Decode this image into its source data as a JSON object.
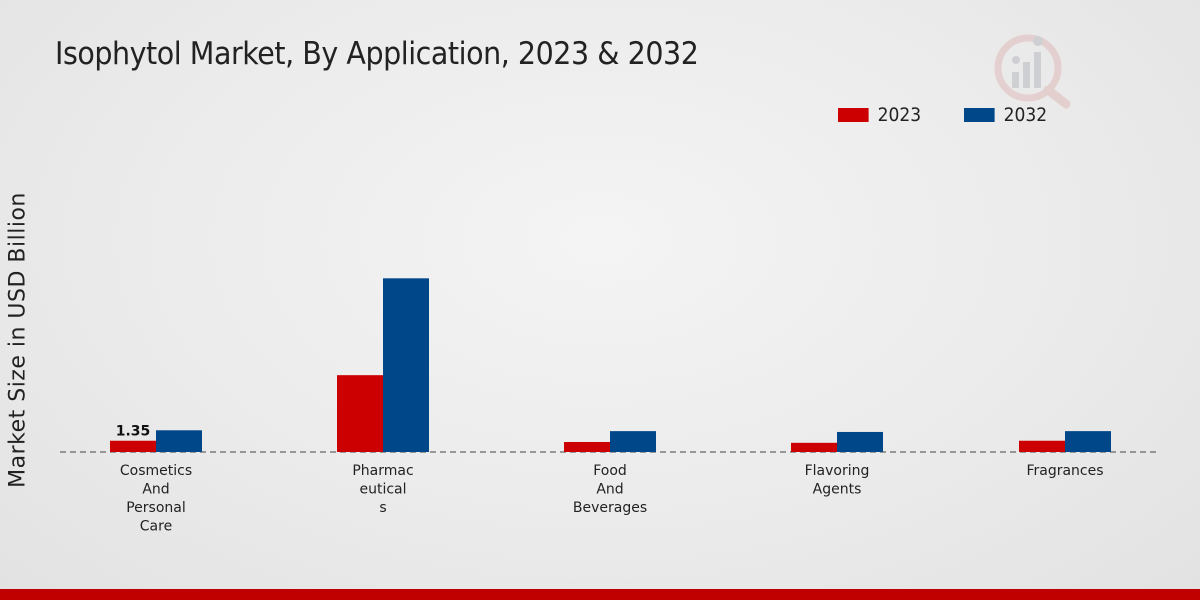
{
  "chart_data": {
    "type": "bar",
    "title": "Isophytol Market, By Application, 2023 & 2032",
    "xlabel": "",
    "ylabel": "Market Size in USD Billion",
    "categories": [
      [
        "Cosmetics",
        "And",
        "Personal",
        "Care"
      ],
      [
        "Pharmac",
        "eutical",
        "s"
      ],
      [
        "Food",
        "And",
        "Beverages"
      ],
      [
        "Flavoring",
        "Agents"
      ],
      [
        "Fragrances"
      ]
    ],
    "series": [
      {
        "name": "2023",
        "color": "#cc0000",
        "values": [
          1.35,
          9.2,
          1.2,
          1.1,
          1.35
        ]
      },
      {
        "name": "2032",
        "color": "#00478a",
        "values": [
          2.6,
          20.8,
          2.5,
          2.4,
          2.5
        ]
      }
    ],
    "data_labels": [
      {
        "series": 0,
        "index": 0,
        "text": "1.35"
      }
    ],
    "ylim": [
      0,
      30
    ],
    "legend_position": "top-right",
    "grid": false
  }
}
